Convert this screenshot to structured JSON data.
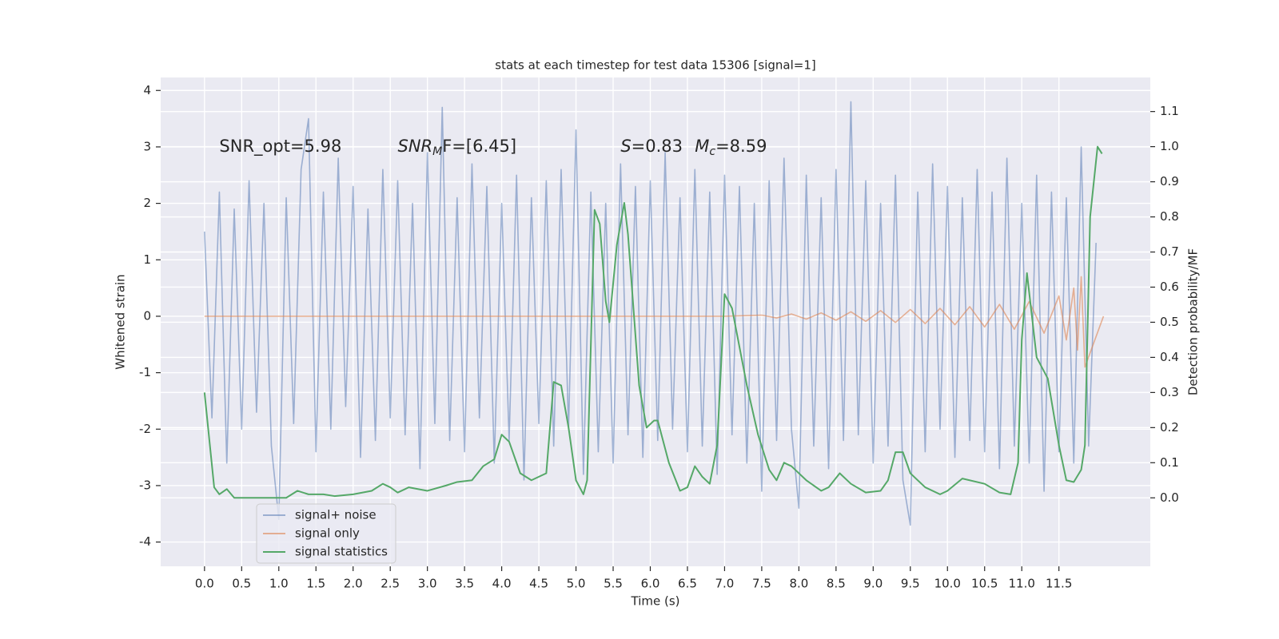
{
  "chart_data": {
    "type": "line",
    "title": "stats at each timestep for test data 15306 [signal=1]",
    "x_label": "Time (s)",
    "y_label": "Whitened strain",
    "y2_label": "Detection probability/MF",
    "annotations": [
      {
        "main": "SNR_opt=5.98"
      },
      {
        "main": "SNR",
        "sub": "M",
        "rest": "F=[6.45]"
      },
      {
        "main": "S",
        "rest": "=0.83"
      },
      {
        "main": "M",
        "sub": "c",
        "rest": "=8.59"
      }
    ],
    "xlim": [
      -0.59,
      12.73
    ],
    "ylim": [
      -4.43,
      4.23
    ],
    "y2lim": [
      -0.195,
      1.197
    ],
    "xticks": [
      {
        "value": 0,
        "label": "0.0"
      },
      0.5,
      {
        "value": 1,
        "label": "1.0"
      },
      1.5,
      {
        "value": 2,
        "label": "2.0"
      },
      2.5,
      {
        "value": 3,
        "label": "3.0"
      },
      3.5,
      {
        "value": 4,
        "label": "4.0"
      },
      4.5,
      {
        "value": 5,
        "label": "5.0"
      },
      5.5,
      {
        "value": 6,
        "label": "6.0"
      },
      6.5,
      {
        "value": 7,
        "label": "7.0"
      },
      7.5,
      {
        "value": 8,
        "label": "8.0"
      },
      8.5,
      {
        "value": 9,
        "label": "9.0"
      },
      9.5,
      {
        "value": 10,
        "label": "10.0"
      },
      10.5,
      {
        "value": 11,
        "label": "11.0"
      },
      11.5
    ],
    "yticks": [
      -4,
      -3,
      -2,
      -1,
      0,
      1,
      2,
      3,
      4
    ],
    "y2ticks": [
      {
        "value": 0,
        "label": "0.0"
      },
      0.1,
      0.2,
      0.3,
      0.4,
      0.5,
      0.6,
      0.7,
      0.8,
      0.9,
      {
        "value": 1,
        "label": "1.0"
      },
      1.1
    ],
    "grid": true,
    "legend": "lower left",
    "series": [
      {
        "name": "signal+ noise",
        "color": "#4c72b0",
        "alpha": 0.5,
        "x": [
          0,
          0.1,
          0.2,
          0.3,
          0.4,
          0.5,
          0.6,
          0.7,
          0.8,
          0.9,
          1,
          1.1,
          1.2,
          1.3,
          1.4,
          1.5,
          1.6,
          1.7,
          1.8,
          1.9,
          2,
          2.1,
          2.2,
          2.3,
          2.4,
          2.5,
          2.6,
          2.7,
          2.8,
          2.9,
          3,
          3.1,
          3.2,
          3.3,
          3.4,
          3.5,
          3.6,
          3.7,
          3.8,
          3.9,
          4,
          4.1,
          4.2,
          4.3,
          4.4,
          4.5,
          4.6,
          4.7,
          4.8,
          4.9,
          5,
          5.1,
          5.2,
          5.3,
          5.4,
          5.5,
          5.6,
          5.7,
          5.8,
          5.9,
          6,
          6.1,
          6.2,
          6.3,
          6.4,
          6.5,
          6.6,
          6.7,
          6.8,
          6.9,
          7,
          7.1,
          7.2,
          7.3,
          7.4,
          7.5,
          7.6,
          7.7,
          7.8,
          7.9,
          8,
          8.1,
          8.2,
          8.3,
          8.4,
          8.5,
          8.6,
          8.7,
          8.8,
          8.9,
          9,
          9.1,
          9.2,
          9.3,
          9.4,
          9.5,
          9.6,
          9.7,
          9.8,
          9.9,
          10,
          10.1,
          10.2,
          10.3,
          10.4,
          10.5,
          10.6,
          10.7,
          10.8,
          10.9,
          11,
          11.1,
          11.2,
          11.3,
          11.4,
          11.5,
          11.6,
          11.7,
          11.8,
          11.9,
          12
        ],
        "values": [
          1.5,
          -1.8,
          2.2,
          -2.6,
          1.9,
          -2.0,
          2.4,
          -1.7,
          2.0,
          -2.3,
          -3.6,
          2.1,
          -1.9,
          2.6,
          3.5,
          -2.4,
          2.2,
          -2.0,
          2.8,
          -1.6,
          2.3,
          -2.5,
          1.9,
          -2.2,
          2.6,
          -1.8,
          2.4,
          -2.1,
          2.0,
          -2.7,
          2.9,
          -1.9,
          3.7,
          -2.2,
          2.1,
          -2.4,
          2.7,
          -1.8,
          2.3,
          -2.6,
          2.0,
          -2.2,
          2.5,
          -2.9,
          2.1,
          -1.9,
          2.4,
          -2.3,
          2.6,
          -2.0,
          3.3,
          -2.8,
          2.2,
          -2.4,
          2.0,
          -2.6,
          2.7,
          -2.1,
          2.3,
          -2.5,
          2.4,
          -2.2,
          2.9,
          -2.0,
          2.1,
          -2.4,
          2.6,
          -2.3,
          2.2,
          -2.8,
          2.5,
          -2.1,
          2.3,
          -2.6,
          2.0,
          -3.1,
          2.4,
          -2.2,
          2.8,
          -2.0,
          -3.4,
          2.5,
          -2.3,
          2.1,
          -2.7,
          2.6,
          -2.2,
          3.8,
          -2.1,
          2.4,
          -2.6,
          2.0,
          -2.3,
          2.5,
          -2.9,
          -3.7,
          2.2,
          -2.4,
          2.7,
          -2.0,
          2.3,
          -2.5,
          2.1,
          -2.2,
          2.6,
          -2.4,
          2.2,
          -2.7,
          2.8,
          -2.3,
          2.0,
          -2.6,
          2.5,
          -3.1,
          2.2,
          -2.4,
          2.1,
          -2.6,
          3.0,
          -2.3,
          1.3
        ]
      },
      {
        "name": "signal only",
        "color": "#dd8452",
        "alpha": 0.6,
        "x": [
          0,
          1,
          2,
          3,
          4,
          5,
          6,
          7,
          7.5,
          7.7,
          7.9,
          8.1,
          8.3,
          8.5,
          8.7,
          8.9,
          9.1,
          9.3,
          9.5,
          9.7,
          9.9,
          10.1,
          10.3,
          10.5,
          10.7,
          10.9,
          11.1,
          11.3,
          11.5,
          11.6,
          11.7,
          11.75,
          11.8,
          11.85,
          12.1
        ],
        "values": [
          0,
          0,
          0,
          0,
          0,
          0,
          0,
          0,
          0.02,
          -0.03,
          0.04,
          -0.05,
          0.06,
          -0.07,
          0.08,
          -0.09,
          0.1,
          -0.11,
          0.12,
          -0.13,
          0.14,
          -0.15,
          0.17,
          -0.19,
          0.21,
          -0.23,
          0.26,
          -0.3,
          0.36,
          -0.42,
          0.5,
          -0.6,
          0.7,
          -0.9,
          0
        ]
      },
      {
        "name": "signal statistics",
        "color": "#55a868",
        "alpha": 1,
        "axis": "y2",
        "x": [
          0,
          0.13,
          0.2,
          0.3,
          0.4,
          0.5,
          0.75,
          1,
          1.1,
          1.25,
          1.4,
          1.6,
          1.75,
          2,
          2.25,
          2.4,
          2.5,
          2.6,
          2.75,
          3,
          3.25,
          3.4,
          3.6,
          3.75,
          3.9,
          4,
          4.1,
          4.25,
          4.4,
          4.6,
          4.7,
          4.8,
          4.9,
          5,
          5.1,
          5.15,
          5.25,
          5.32,
          5.4,
          5.45,
          5.55,
          5.65,
          5.7,
          5.85,
          5.95,
          6.05,
          6.1,
          6.25,
          6.4,
          6.5,
          6.6,
          6.7,
          6.8,
          6.9,
          7,
          7.1,
          7.3,
          7.45,
          7.6,
          7.7,
          7.8,
          7.9,
          8.1,
          8.3,
          8.4,
          8.55,
          8.7,
          8.9,
          9.1,
          9.2,
          9.3,
          9.4,
          9.5,
          9.7,
          9.9,
          10,
          10.2,
          10.5,
          10.7,
          10.85,
          10.95,
          11,
          11.07,
          11.2,
          11.35,
          11.5,
          11.6,
          11.7,
          11.8,
          11.85,
          11.92,
          12.02,
          12.08
        ],
        "values": [
          0.3,
          0.03,
          0.01,
          0.025,
          0,
          0,
          0,
          0,
          0,
          0.02,
          0.01,
          0.01,
          0.005,
          0.01,
          0.02,
          0.04,
          0.03,
          0.015,
          0.03,
          0.02,
          0.035,
          0.045,
          0.05,
          0.09,
          0.11,
          0.18,
          0.16,
          0.07,
          0.05,
          0.07,
          0.33,
          0.32,
          0.2,
          0.05,
          0.01,
          0.05,
          0.82,
          0.78,
          0.56,
          0.5,
          0.72,
          0.84,
          0.75,
          0.32,
          0.2,
          0.22,
          0.22,
          0.1,
          0.02,
          0.03,
          0.09,
          0.06,
          0.04,
          0.15,
          0.58,
          0.54,
          0.32,
          0.18,
          0.08,
          0.05,
          0.1,
          0.09,
          0.05,
          0.02,
          0.03,
          0.07,
          0.04,
          0.015,
          0.02,
          0.05,
          0.13,
          0.13,
          0.07,
          0.03,
          0.01,
          0.02,
          0.055,
          0.04,
          0.015,
          0.01,
          0.1,
          0.45,
          0.64,
          0.4,
          0.34,
          0.15,
          0.05,
          0.045,
          0.08,
          0.15,
          0.8,
          1.0,
          0.98
        ]
      }
    ]
  }
}
